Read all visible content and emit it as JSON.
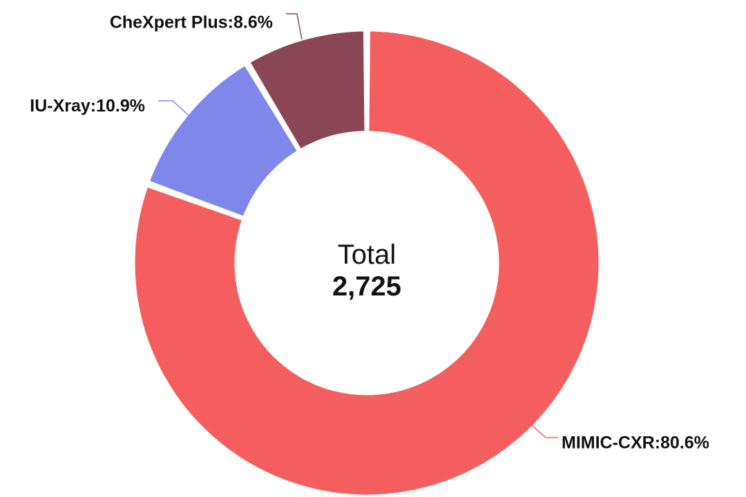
{
  "chart_data": {
    "type": "pie",
    "variant": "donut",
    "categories": [
      "MIMIC-CXR",
      "IU-Xray",
      "CheXpert Plus"
    ],
    "values": [
      80.6,
      10.9,
      8.6
    ],
    "labels": [
      "MIMIC-CXR:80.6%",
      "IU-Xray:10.9%",
      "CheXpert Plus:8.6%"
    ],
    "colors": [
      "#f55e5e",
      "#8087eb",
      "#8b4655"
    ],
    "center": {
      "title": "Total",
      "value": "2,725"
    }
  }
}
